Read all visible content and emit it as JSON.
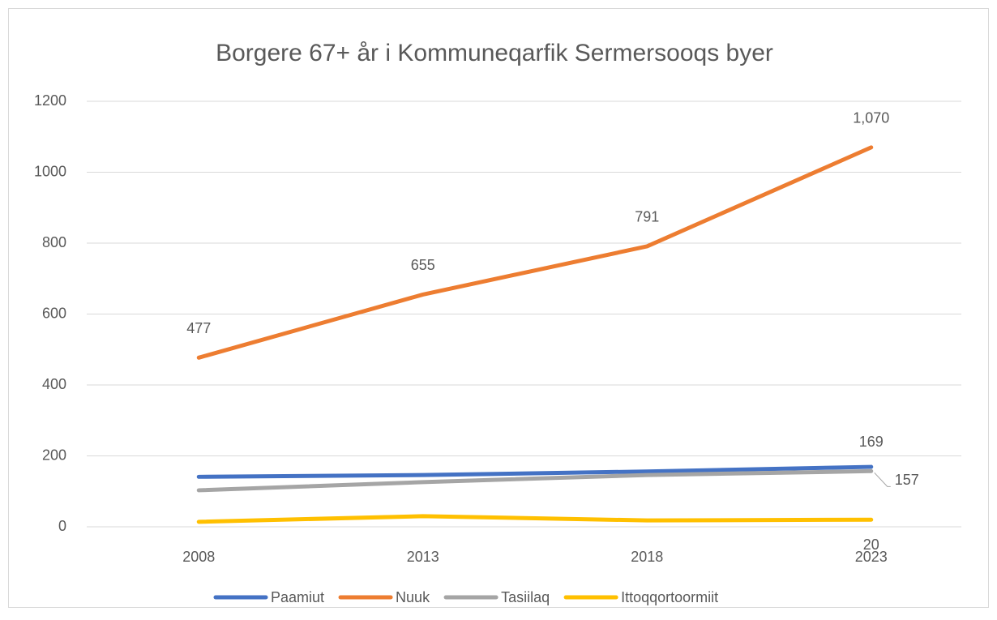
{
  "chart_data": {
    "type": "line",
    "title": "Borgere 67+ år i Kommuneqarfik Sermersooqs byer",
    "categories": [
      "2008",
      "2013",
      "2018",
      "2023"
    ],
    "series": [
      {
        "name": "Paamiut",
        "color": "#4472c4",
        "values": [
          141,
          146,
          156,
          169
        ],
        "value_labels": [
          null,
          null,
          null,
          "169"
        ]
      },
      {
        "name": "Nuuk",
        "color": "#ed7d31",
        "values": [
          477,
          655,
          791,
          1070
        ],
        "value_labels": [
          "477",
          "655",
          "791",
          "1,070"
        ]
      },
      {
        "name": "Tasiilaq",
        "color": "#a5a5a5",
        "values": [
          103,
          126,
          146,
          157
        ],
        "value_labels": [
          null,
          null,
          null,
          "157"
        ]
      },
      {
        "name": "Ittoqqortoormiit",
        "color": "#ffc000",
        "values": [
          14,
          30,
          18,
          20
        ],
        "value_labels": [
          null,
          null,
          null,
          "20"
        ]
      }
    ],
    "ylim": [
      0,
      1200
    ],
    "yticks": [
      0,
      200,
      400,
      600,
      800,
      1000,
      1200
    ],
    "grid": true,
    "legend": "bottom"
  }
}
